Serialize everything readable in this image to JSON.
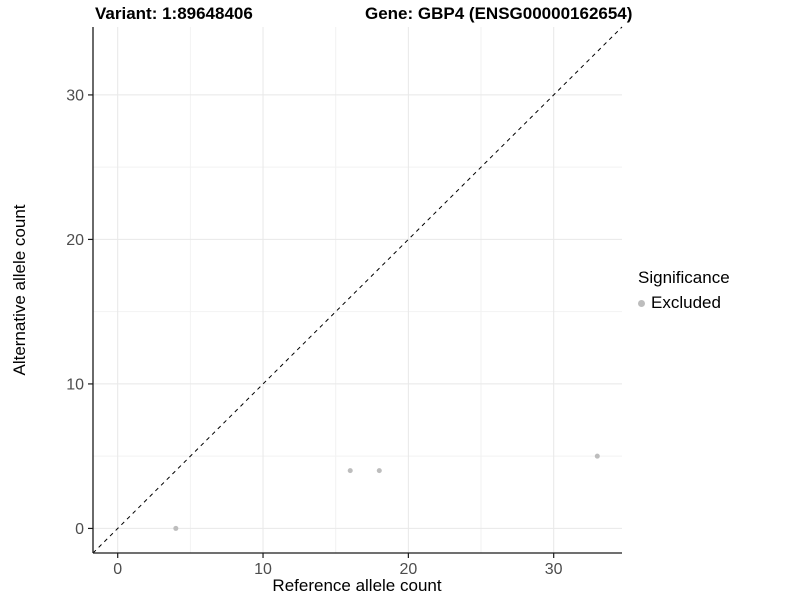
{
  "titles": {
    "variant": "Variant: 1:89648406",
    "gene": "Gene: GBP4 (ENSG00000162654)"
  },
  "axes": {
    "x_label": "Reference allele count",
    "y_label": "Alternative allele count"
  },
  "legend": {
    "title": "Significance",
    "items": [
      {
        "label": "Excluded",
        "color": "#bdbdbd"
      }
    ]
  },
  "colors": {
    "background": "#ffffff",
    "point": "#bdbdbd",
    "axis_line": "#1a1a1a",
    "tick_label": "#4d4d4d",
    "grid_major": "#e8e8e8",
    "grid_minor": "#f2f2f2",
    "identity_line": "#000000"
  },
  "chart_data": {
    "type": "scatter",
    "title": "Variant: 1:89648406   |   Gene: GBP4 (ENSG00000162654)",
    "xlabel": "Reference allele count",
    "ylabel": "Alternative allele count",
    "xlim": [
      -1.7,
      34.7
    ],
    "ylim": [
      -1.7,
      34.7
    ],
    "x_ticks": [
      0,
      10,
      20,
      30
    ],
    "y_ticks": [
      0,
      10,
      20,
      30
    ],
    "x_minor_ticks": [
      5,
      15,
      25
    ],
    "y_minor_ticks": [
      5,
      15,
      25
    ],
    "grid": true,
    "identity_line": {
      "show": true,
      "style": "dashed"
    },
    "legend_position": "right",
    "series": [
      {
        "name": "Excluded",
        "color": "#bdbdbd",
        "point_radius": 2.5,
        "points": [
          [
            4,
            0
          ],
          [
            16,
            4
          ],
          [
            18,
            4
          ],
          [
            33,
            5
          ]
        ]
      }
    ]
  }
}
